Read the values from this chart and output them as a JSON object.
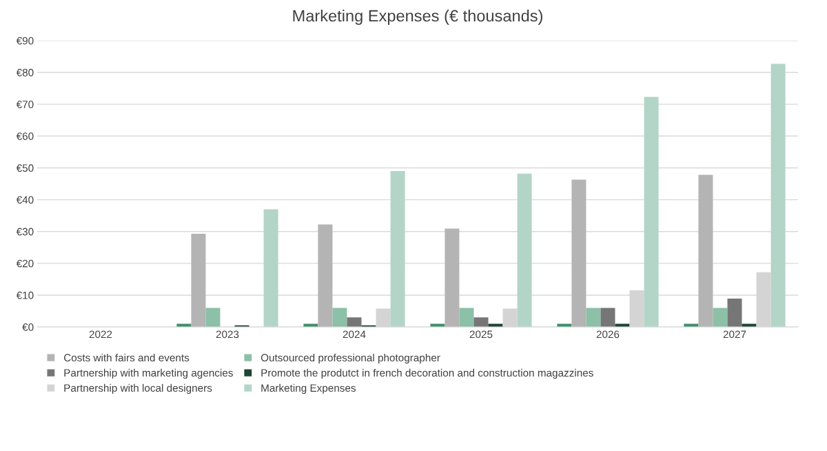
{
  "chart_data": {
    "type": "bar",
    "title": "Marketing Expenses (€ thousands)",
    "categories": [
      "2022",
      "2023",
      "2024",
      "2025",
      "2026",
      "2027"
    ],
    "series": [
      {
        "color": "#3f8f6e",
        "values": [
          0,
          1,
          1,
          1,
          1,
          1
        ]
      },
      {
        "name": "Costs with fairs and events",
        "color": "#b4b4b4",
        "values": [
          0,
          29.3,
          32.2,
          30.9,
          46.3,
          47.8
        ]
      },
      {
        "name": "Outsourced professional photographer",
        "color": "#8cc0a8",
        "values": [
          0,
          6,
          6,
          6,
          6,
          6
        ]
      },
      {
        "name": "Partnership with marketing agencies",
        "color": "#767676",
        "values": [
          0,
          0,
          3,
          3,
          6,
          8.9
        ]
      },
      {
        "name": "Promote the produtct in french decoration and construction magazzines",
        "color": "#1e4434",
        "values": [
          0,
          0.5,
          0.5,
          1,
          1,
          1
        ]
      },
      {
        "name": "Partnership with local designers",
        "color": "#d4d4d4",
        "values": [
          0,
          0,
          5.8,
          5.8,
          11.5,
          17.2
        ]
      },
      {
        "name": "Marketing Expenses",
        "color": "#b3d5c7",
        "values": [
          0,
          37,
          49,
          48.2,
          72.3,
          82.7
        ]
      }
    ],
    "ylim": [
      0,
      90
    ],
    "yticks": [
      {
        "value": 0,
        "label": "€0"
      },
      {
        "value": 10,
        "label": "€10"
      },
      {
        "value": 20,
        "label": "€20"
      },
      {
        "value": 30,
        "label": "€30"
      },
      {
        "value": 40,
        "label": "€40"
      },
      {
        "value": 50,
        "label": "€50"
      },
      {
        "value": 60,
        "label": "€60"
      },
      {
        "value": 70,
        "label": "€70"
      },
      {
        "value": 80,
        "label": "€80"
      },
      {
        "value": 90,
        "label": "€90"
      }
    ],
    "grid": "y",
    "legend": "bottom"
  }
}
